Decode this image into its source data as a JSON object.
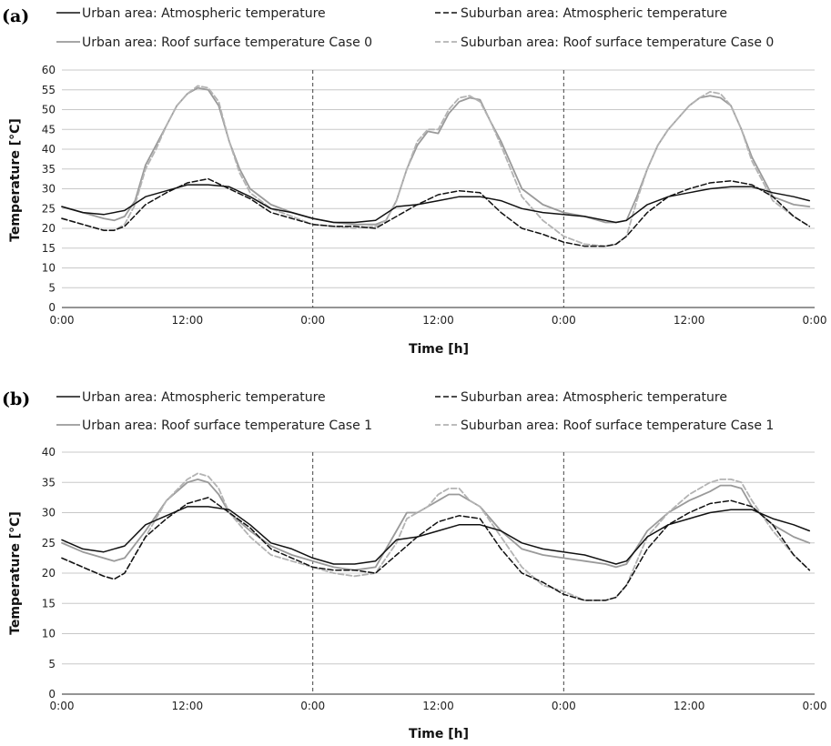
{
  "chart_data": [
    {
      "type": "line",
      "panel_label": "(a)",
      "xlabel": "Time [h]",
      "ylabel": "Temperature [°C]",
      "ylim": [
        0,
        60
      ],
      "yticks": [
        0,
        5,
        10,
        15,
        20,
        25,
        30,
        35,
        40,
        45,
        50,
        55,
        60
      ],
      "xlim": [
        0,
        72
      ],
      "xtick_labels": [
        "0:00",
        "12:00",
        "0:00",
        "12:00",
        "0:00",
        "12:00",
        "0:00"
      ],
      "grid": true,
      "day_dividers": [
        24,
        48
      ],
      "legend_position": "top",
      "series": [
        {
          "name": "Urban area: Atmospheric temperature",
          "color": "#111111",
          "dash": "solid",
          "x": [
            0,
            2,
            4,
            6,
            8,
            10,
            12,
            14,
            16,
            18,
            20,
            22,
            24,
            26,
            28,
            30,
            32,
            34,
            36,
            38,
            40,
            42,
            44,
            46,
            48,
            50,
            52,
            53,
            54,
            56,
            58,
            60,
            62,
            64,
            66,
            68,
            70,
            71.5
          ],
          "y": [
            25.5,
            24,
            23.5,
            24.5,
            28,
            29.5,
            31,
            31,
            30.5,
            28,
            25,
            24,
            22.5,
            21.5,
            21.5,
            22,
            25.5,
            26,
            27,
            28,
            28,
            27,
            25,
            24,
            23.5,
            23,
            22,
            21.5,
            22,
            26,
            28,
            29,
            30,
            30.5,
            30.5,
            29,
            28,
            27
          ]
        },
        {
          "name": "Suburban area: Atmospheric temperature",
          "color": "#111111",
          "dash": "dashed",
          "x": [
            0,
            2,
            4,
            5,
            6,
            8,
            10,
            12,
            14,
            16,
            18,
            20,
            22,
            24,
            26,
            28,
            30,
            32,
            34,
            36,
            38,
            40,
            42,
            44,
            46,
            48,
            50,
            51,
            52,
            53,
            54,
            56,
            58,
            60,
            62,
            64,
            66,
            68,
            70,
            71.5
          ],
          "y": [
            22.5,
            21,
            19.5,
            19.5,
            20.5,
            26,
            29,
            31.5,
            32.5,
            30,
            27.5,
            24,
            22.5,
            21,
            20.5,
            20.5,
            20,
            23,
            26,
            28.5,
            29.5,
            29,
            24,
            20,
            18.5,
            16.5,
            15.5,
            15.5,
            15.5,
            16,
            18,
            24,
            28,
            30,
            31.5,
            32,
            31,
            28,
            23,
            20.5
          ]
        },
        {
          "name": "Urban area: Roof surface temperature Case 0",
          "color": "#9a9a9a",
          "dash": "solid",
          "x": [
            0,
            2,
            4,
            5,
            6,
            7,
            8,
            9,
            10,
            11,
            12,
            13,
            14,
            15,
            16,
            17,
            18,
            20,
            22,
            24,
            26,
            28,
            30,
            31,
            32,
            33,
            34,
            35,
            36,
            37,
            38,
            39,
            40,
            41,
            42,
            44,
            46,
            48,
            50,
            52,
            53,
            54,
            55,
            56,
            57,
            58,
            59,
            60,
            61,
            62,
            63,
            64,
            65,
            66,
            68,
            70,
            71.5
          ],
          "y": [
            25.5,
            24,
            22.5,
            22,
            23,
            27,
            36,
            41,
            46,
            51,
            54,
            55.5,
            55,
            51,
            42,
            35,
            30,
            26,
            24,
            22.5,
            21.5,
            21,
            21,
            22,
            27,
            35,
            41,
            44.5,
            44,
            49,
            52,
            53,
            52.5,
            47,
            42,
            30,
            26,
            24,
            23,
            21.5,
            21.5,
            22,
            28,
            35,
            41,
            45,
            48,
            51,
            53,
            53.5,
            53,
            51,
            45,
            38,
            28,
            26,
            25.5
          ]
        },
        {
          "name": "Suburban area: Roof surface temperature Case 0",
          "color": "#b3b3b3",
          "dash": "dashed",
          "x": [
            0,
            2,
            4,
            5,
            6,
            7,
            8,
            9,
            10,
            11,
            12,
            13,
            14,
            15,
            16,
            17,
            18,
            20,
            22,
            24,
            26,
            28,
            30,
            31,
            32,
            33,
            34,
            35,
            36,
            37,
            38,
            39,
            40,
            41,
            42,
            44,
            46,
            48,
            50,
            52,
            53,
            54,
            55,
            56,
            57,
            58,
            59,
            60,
            61,
            62,
            63,
            64,
            65,
            66,
            68,
            70,
            71.5
          ],
          "y": [
            22.5,
            21,
            19.5,
            19.5,
            21,
            26,
            35,
            40,
            46,
            51,
            54,
            56,
            55.5,
            52,
            42,
            34,
            29,
            25,
            23,
            21,
            20.5,
            20,
            20.5,
            22,
            27,
            35,
            42,
            45,
            45,
            50,
            53,
            53.5,
            52,
            47,
            41,
            28,
            22,
            18,
            16,
            15.5,
            16,
            18,
            27,
            35,
            41,
            45,
            48,
            51,
            53,
            54.5,
            54,
            51,
            45,
            37,
            27,
            23,
            20.5
          ]
        }
      ]
    },
    {
      "type": "line",
      "panel_label": "(b)",
      "xlabel": "Time [h]",
      "ylabel": "Temperature [°C]",
      "ylim": [
        0,
        40
      ],
      "yticks": [
        0,
        5,
        10,
        15,
        20,
        25,
        30,
        35,
        40
      ],
      "xlim": [
        0,
        72
      ],
      "xtick_labels": [
        "0:00",
        "12:00",
        "0:00",
        "12:00",
        "0:00",
        "12:00",
        "0:00"
      ],
      "grid": true,
      "day_dividers": [
        24,
        48
      ],
      "legend_position": "top",
      "series": [
        {
          "name": "Urban area: Atmospheric temperature",
          "color": "#111111",
          "dash": "solid",
          "x": [
            0,
            2,
            4,
            6,
            8,
            10,
            12,
            14,
            16,
            18,
            20,
            22,
            24,
            26,
            28,
            30,
            32,
            34,
            36,
            38,
            40,
            42,
            44,
            46,
            48,
            50,
            52,
            53,
            54,
            56,
            58,
            60,
            62,
            64,
            66,
            68,
            70,
            71.5
          ],
          "y": [
            25.5,
            24,
            23.5,
            24.5,
            28,
            29.5,
            31,
            31,
            30.5,
            28,
            25,
            24,
            22.5,
            21.5,
            21.5,
            22,
            25.5,
            26,
            27,
            28,
            28,
            27,
            25,
            24,
            23.5,
            23,
            22,
            21.5,
            22,
            26,
            28,
            29,
            30,
            30.5,
            30.5,
            29,
            28,
            27
          ]
        },
        {
          "name": "Suburban area: Atmospheric temperature",
          "color": "#111111",
          "dash": "dashed",
          "x": [
            0,
            2,
            4,
            5,
            6,
            8,
            10,
            12,
            14,
            16,
            18,
            20,
            22,
            24,
            26,
            28,
            30,
            32,
            34,
            36,
            38,
            40,
            42,
            44,
            46,
            48,
            50,
            51,
            52,
            53,
            54,
            56,
            58,
            60,
            62,
            64,
            66,
            68,
            70,
            71.5
          ],
          "y": [
            22.5,
            21,
            19.5,
            19,
            20,
            26,
            29,
            31.5,
            32.5,
            30,
            27.5,
            24,
            22.5,
            21,
            20.5,
            20.5,
            20,
            23,
            26,
            28.5,
            29.5,
            29,
            24,
            20,
            18.5,
            16.5,
            15.5,
            15.5,
            15.5,
            16,
            18,
            24,
            28,
            30,
            31.5,
            32,
            31,
            28,
            23,
            20.5
          ]
        },
        {
          "name": "Urban area: Roof surface temperature Case 1",
          "color": "#9a9a9a",
          "dash": "solid",
          "x": [
            0,
            2,
            4,
            5,
            6,
            8,
            10,
            12,
            13,
            14,
            15,
            16,
            18,
            20,
            22,
            24,
            26,
            28,
            30,
            32,
            33,
            34,
            35,
            36,
            37,
            38,
            39,
            40,
            42,
            44,
            46,
            48,
            50,
            52,
            53,
            54,
            56,
            58,
            60,
            62,
            63,
            64,
            65,
            66,
            68,
            70,
            71.5
          ],
          "y": [
            25,
            23.5,
            22.5,
            22,
            22.5,
            27,
            32,
            35,
            35.5,
            35,
            33,
            30,
            27,
            24.5,
            23,
            22,
            21,
            20.5,
            21,
            27,
            30,
            30,
            31,
            32,
            33,
            33,
            32,
            31,
            27,
            24,
            23,
            22.5,
            22,
            21.5,
            21,
            21.5,
            27,
            30,
            32,
            33.5,
            34.5,
            34.5,
            34,
            31,
            28,
            26,
            25
          ]
        },
        {
          "name": "Suburban area: Roof surface temperature Case 1",
          "color": "#b3b3b3",
          "dash": "dashed",
          "x": [
            0,
            2,
            4,
            5,
            6,
            8,
            10,
            12,
            13,
            14,
            15,
            16,
            18,
            20,
            22,
            24,
            26,
            28,
            30,
            32,
            33,
            34,
            35,
            36,
            37,
            38,
            39,
            40,
            42,
            44,
            46,
            48,
            50,
            52,
            53,
            54,
            56,
            58,
            60,
            62,
            63,
            64,
            65,
            66,
            68,
            70,
            71.5
          ],
          "y": [
            22.5,
            21,
            19.5,
            19,
            20,
            26,
            32,
            35.5,
            36.5,
            36,
            34,
            30,
            26,
            23,
            22,
            21,
            20,
            19.5,
            20,
            25,
            29,
            30,
            31,
            33,
            34,
            34,
            32,
            31,
            26,
            21,
            18,
            17,
            15.5,
            15.5,
            16,
            18,
            26,
            30,
            33,
            35,
            35.5,
            35.5,
            35,
            32,
            27,
            23,
            20.5
          ]
        }
      ]
    }
  ]
}
